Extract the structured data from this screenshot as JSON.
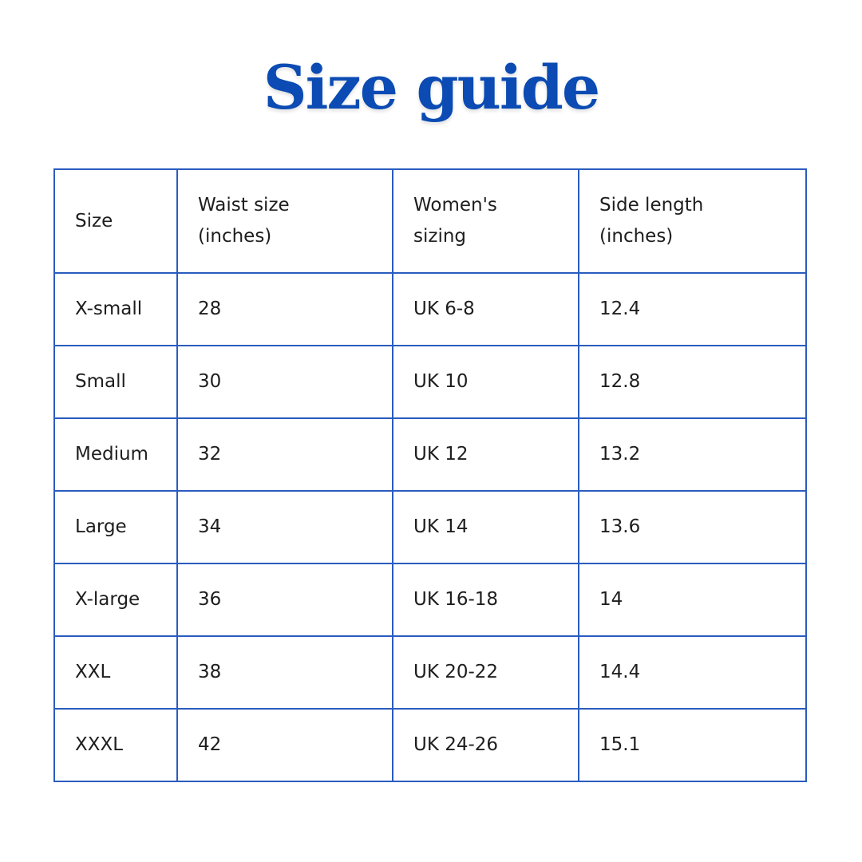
{
  "title": "Size guide",
  "colors": {
    "title": "#0b4bb3",
    "border": "#2a5cbf"
  },
  "table": {
    "headers": [
      {
        "line1": "Size",
        "line2": ""
      },
      {
        "line1": "Waist size",
        "line2": "(inches)"
      },
      {
        "line1": "Women's",
        "line2": "sizing"
      },
      {
        "line1": "Side length",
        "line2": "(inches)"
      }
    ],
    "rows": [
      [
        "X-small",
        "28",
        "UK 6-8",
        "12.4"
      ],
      [
        "Small",
        "30",
        "UK 10",
        "12.8"
      ],
      [
        "Medium",
        "32",
        "UK 12",
        "13.2"
      ],
      [
        "Large",
        "34",
        "UK 14",
        "13.6"
      ],
      [
        "X-large",
        "36",
        "UK 16-18",
        "14"
      ],
      [
        "XXL",
        "38",
        "UK 20-22",
        "14.4"
      ],
      [
        "XXXL",
        "42",
        "UK 24-26",
        "15.1"
      ]
    ]
  }
}
